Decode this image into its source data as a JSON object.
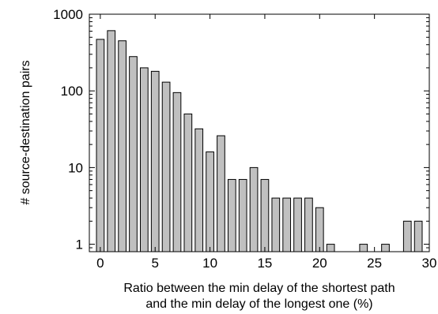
{
  "chart_data": {
    "type": "bar",
    "xlabel": "Ratio between the min delay of the shortest path and the min delay of the longest one (%)",
    "xlabel_lines": [
      "Ratio between the min delay of the shortest path",
      "and the min delay of the longest one (%)"
    ],
    "ylabel": "# source-destination pairs",
    "yscale": "log",
    "ylim": [
      0.8,
      1000
    ],
    "xlim": [
      -1,
      30
    ],
    "grid": false,
    "x": [
      0,
      1,
      2,
      3,
      4,
      5,
      6,
      7,
      8,
      9,
      10,
      11,
      12,
      13,
      14,
      15,
      16,
      17,
      18,
      19,
      20,
      21,
      22,
      23,
      24,
      25,
      26,
      27,
      28,
      29
    ],
    "values": [
      470,
      610,
      450,
      280,
      200,
      180,
      130,
      95,
      50,
      32,
      16,
      26,
      7,
      7,
      10,
      7,
      4,
      4,
      4,
      4,
      3,
      1,
      0,
      0,
      1,
      0,
      1,
      0,
      2,
      2
    ],
    "xticks": [
      0,
      5,
      10,
      15,
      20,
      25,
      30
    ],
    "xtick_labels": [
      "0",
      "5",
      "10",
      "15",
      "20",
      "25",
      "30"
    ],
    "yticks": [
      1,
      10,
      100,
      1000
    ],
    "ytick_labels": [
      "1",
      "10",
      "100",
      "1000"
    ],
    "bar_color": "#c0c0c0",
    "bar_edge_color": "#000000"
  }
}
